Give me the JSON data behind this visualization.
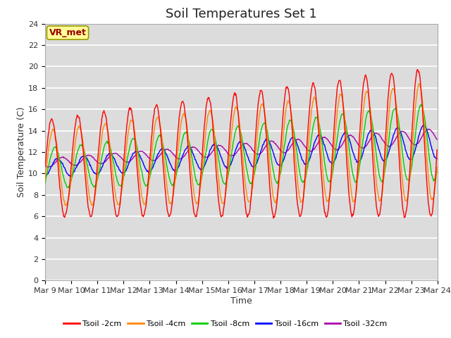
{
  "title": "Soil Temperatures Set 1",
  "xlabel": "Time",
  "ylabel": "Soil Temperature (C)",
  "ylim": [
    0,
    24
  ],
  "yticks": [
    0,
    2,
    4,
    6,
    8,
    10,
    12,
    14,
    16,
    18,
    20,
    22,
    24
  ],
  "xtick_labels": [
    "Mar 9",
    "Mar 10",
    "Mar 11",
    "Mar 12",
    "Mar 13",
    "Mar 14",
    "Mar 15",
    "Mar 16",
    "Mar 17",
    "Mar 18",
    "Mar 19",
    "Mar 20",
    "Mar 21",
    "Mar 22",
    "Mar 23",
    "Mar 24"
  ],
  "series_colors": [
    "#ff0000",
    "#ff8800",
    "#00cc00",
    "#0000ff",
    "#aa00aa"
  ],
  "series_labels": [
    "Tsoil -2cm",
    "Tsoil -4cm",
    "Tsoil -8cm",
    "Tsoil -16cm",
    "Tsoil -32cm"
  ],
  "annotation_text": "VR_met",
  "annotation_bg": "#ffff99",
  "annotation_border": "#999900",
  "annotation_text_color": "#990000",
  "background_color": "#dcdcdc",
  "grid_color": "#ffffff",
  "title_fontsize": 13,
  "axis_fontsize": 9,
  "tick_fontsize": 8
}
